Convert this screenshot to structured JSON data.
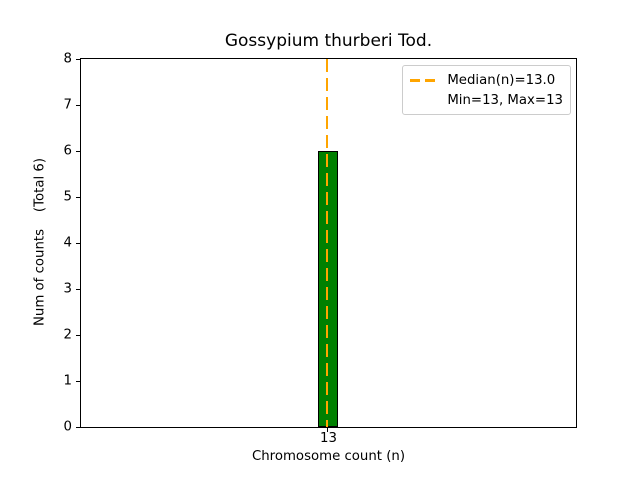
{
  "title": "Gossypium thurberi Tod.",
  "chart_data": {
    "type": "bar",
    "title": "Gossypium thurberi Tod.",
    "xlabel": "Chromosome count (n)",
    "ylabel": "Num of counts    (Total 6)",
    "ylabel_parts": [
      "Num of counts",
      "(Total 6)"
    ],
    "categories": [
      "13"
    ],
    "values": [
      6
    ],
    "total_counts": 6,
    "ylim": [
      0,
      8
    ],
    "yticks": [
      0,
      1,
      2,
      3,
      4,
      5,
      6,
      7,
      8
    ],
    "xticks": [
      "13"
    ],
    "grid": false,
    "bar_color": "#008000",
    "bar_edge_color": "#000000",
    "median_line": {
      "x": 13.0,
      "color": "#FFA500",
      "style": "dashed",
      "label": "Median(n)=13.0"
    },
    "stats": {
      "median": 13.0,
      "min": 13,
      "max": 13
    },
    "legend": {
      "position": "upper right",
      "entries": [
        {
          "handle": "orange-dashed-line",
          "label": "Median(n)=13.0"
        },
        {
          "handle": "none",
          "label": "Min=13, Max=13"
        }
      ]
    }
  }
}
